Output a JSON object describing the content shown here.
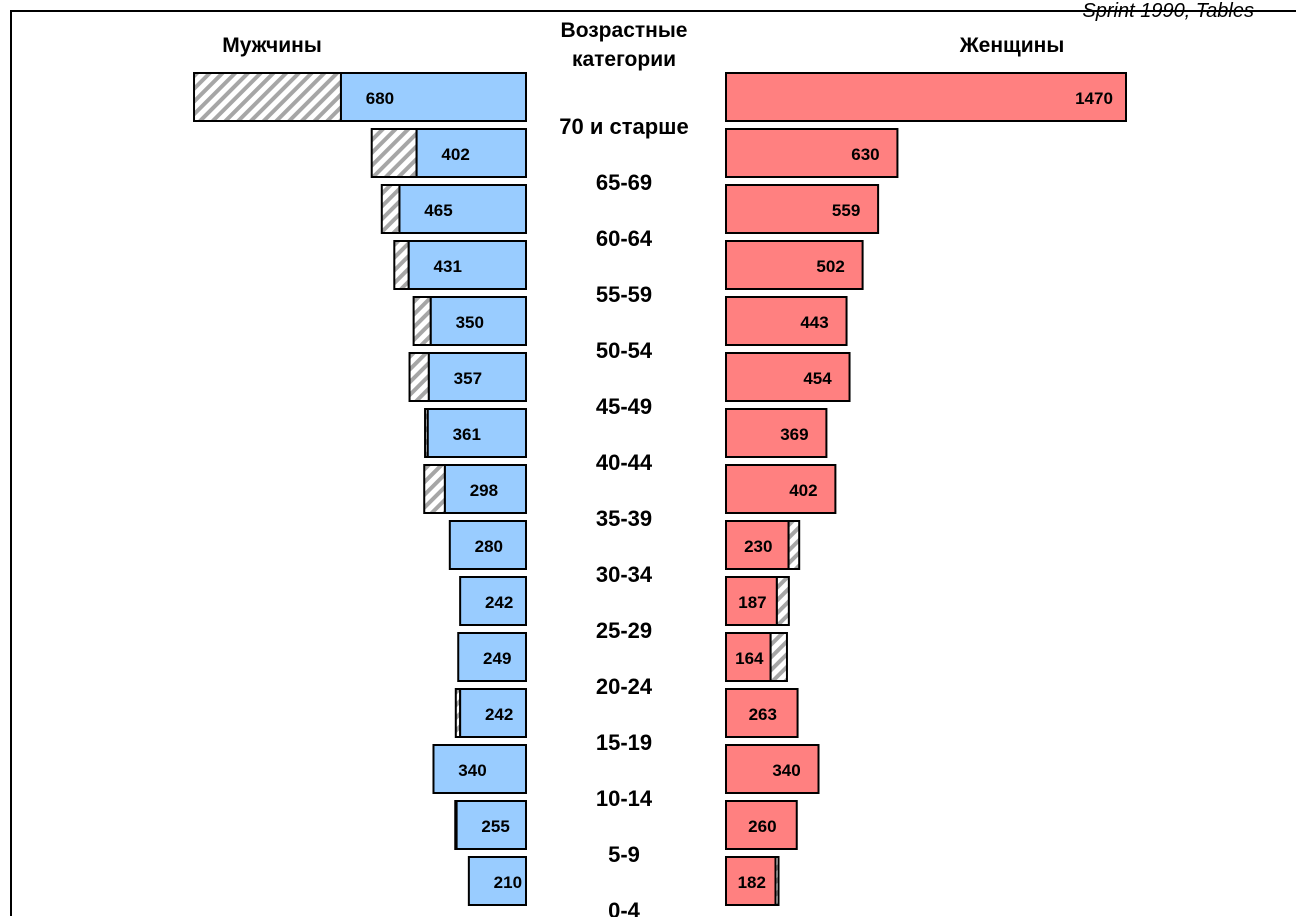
{
  "corner_note": "Sprint 1990, Tables",
  "headers": {
    "men": "Мужчины",
    "age_line1": "Возрастные",
    "age_line2": "категории",
    "women": "Женщины"
  },
  "colors": {
    "men_fill": "#99ccff",
    "women_fill": "#ff8080",
    "excess_hatch": "#a6a6a6",
    "outline": "#000000"
  },
  "chart_data": {
    "type": "bar",
    "subtype": "population-pyramid",
    "categories": [
      "70 и старше",
      "65-69",
      "60-64",
      "55-59",
      "50-54",
      "45-49",
      "40-44",
      "35-39",
      "30-34",
      "25-29",
      "20-24",
      "15-19",
      "10-14",
      "5-9",
      "0-4"
    ],
    "series": [
      {
        "name": "Мужчины",
        "values": [
          680,
          402,
          465,
          431,
          350,
          357,
          361,
          298,
          280,
          242,
          249,
          242,
          340,
          255,
          210
        ]
      },
      {
        "name": "Женщины",
        "values": [
          1470,
          630,
          559,
          502,
          443,
          454,
          369,
          402,
          230,
          187,
          164,
          263,
          340,
          260,
          182
        ]
      }
    ],
    "excess_segment_widths": {
      "Мужчины": [
        540,
        165,
        65,
        53,
        63,
        71,
        10,
        76,
        0,
        0,
        0,
        16,
        0,
        5,
        0
      ],
      "Женщины": [
        0,
        0,
        0,
        0,
        0,
        0,
        0,
        0,
        39,
        44,
        60,
        0,
        0,
        0,
        11
      ]
    },
    "excess_pattern": "hatched",
    "xlim": [
      0,
      1470
    ]
  }
}
